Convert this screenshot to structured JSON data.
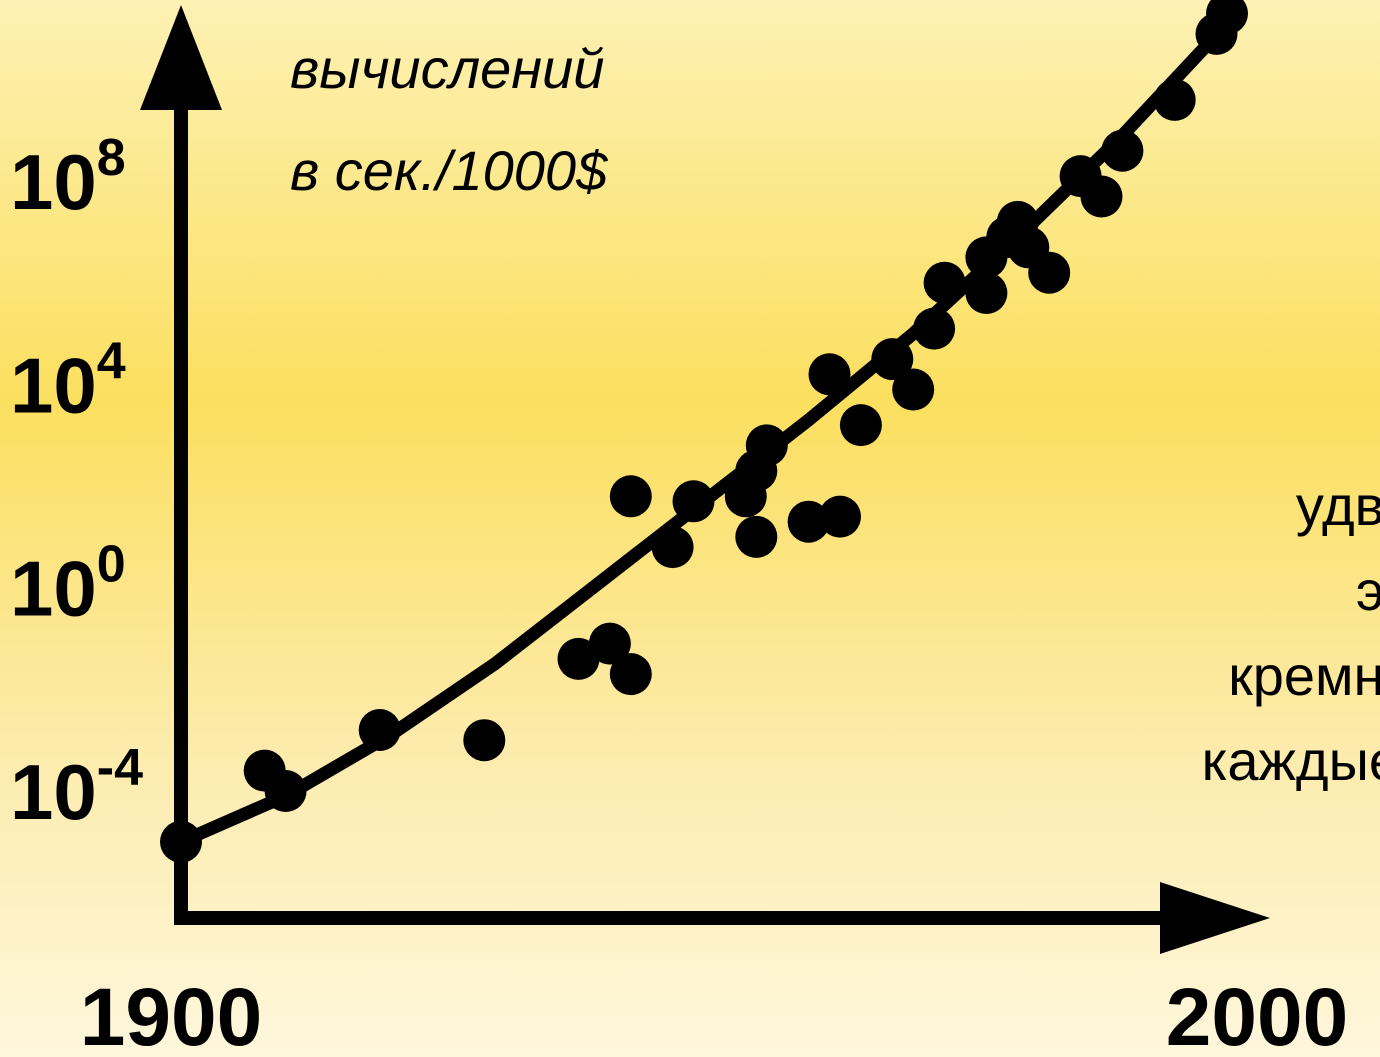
{
  "chart_data": {
    "type": "scatter",
    "title": "",
    "ylabel_lines": [
      "вычислений",
      "в сек./1000$"
    ],
    "xlabel": "",
    "x_ticks": [
      {
        "value": 1900,
        "label": "1900"
      },
      {
        "value": 2000,
        "label": "2000"
      }
    ],
    "y_ticks": [
      {
        "exp": 8,
        "base": "10",
        "sup": "8"
      },
      {
        "exp": 4,
        "base": "10",
        "sup": "4"
      },
      {
        "exp": 0,
        "base": "10",
        "sup": "0"
      },
      {
        "exp": -4,
        "base": "10",
        "sup": "-4"
      }
    ],
    "y_scale": "log10",
    "xlim": [
      1900,
      2000
    ],
    "ylim_exp": [
      -6.5,
      9.5
    ],
    "annotation_lines": [
      "удв",
      "э",
      "кремн",
      "каждые"
    ],
    "series": [
      {
        "type": "scatter",
        "points": [
          [
            1900,
            -5.0
          ],
          [
            1908,
            -3.6
          ],
          [
            1910,
            -4.0
          ],
          [
            1919,
            -2.8
          ],
          [
            1929,
            -3.0
          ],
          [
            1938,
            -1.4
          ],
          [
            1941,
            -1.1
          ],
          [
            1943,
            -1.7
          ],
          [
            1943,
            1.8
          ],
          [
            1947,
            0.8
          ],
          [
            1949,
            1.7
          ],
          [
            1954,
            1.8
          ],
          [
            1955,
            2.3
          ],
          [
            1955,
            1.0
          ],
          [
            1956,
            2.8
          ],
          [
            1960,
            1.3
          ],
          [
            1963,
            1.4
          ],
          [
            1962,
            4.2
          ],
          [
            1965,
            3.2
          ],
          [
            1968,
            4.5
          ],
          [
            1970,
            3.9
          ],
          [
            1972,
            5.1
          ],
          [
            1973,
            6.0
          ],
          [
            1977,
            5.8
          ],
          [
            1977,
            6.5
          ],
          [
            1979,
            6.9
          ],
          [
            1980,
            7.2
          ],
          [
            1981,
            6.7
          ],
          [
            1983,
            6.2
          ],
          [
            1986,
            8.1
          ],
          [
            1988,
            7.7
          ],
          [
            1990,
            8.6
          ],
          [
            1995,
            9.6
          ],
          [
            1999,
            10.9
          ],
          [
            2000,
            11.3
          ]
        ]
      },
      {
        "type": "line",
        "points": [
          [
            1900,
            -5.0
          ],
          [
            1910,
            -4.1
          ],
          [
            1920,
            -2.9
          ],
          [
            1930,
            -1.5
          ],
          [
            1940,
            0.1
          ],
          [
            1950,
            1.7
          ],
          [
            1960,
            3.3
          ],
          [
            1970,
            5.0
          ],
          [
            1980,
            6.9
          ],
          [
            1990,
            8.9
          ],
          [
            2000,
            11.1
          ]
        ]
      }
    ]
  }
}
